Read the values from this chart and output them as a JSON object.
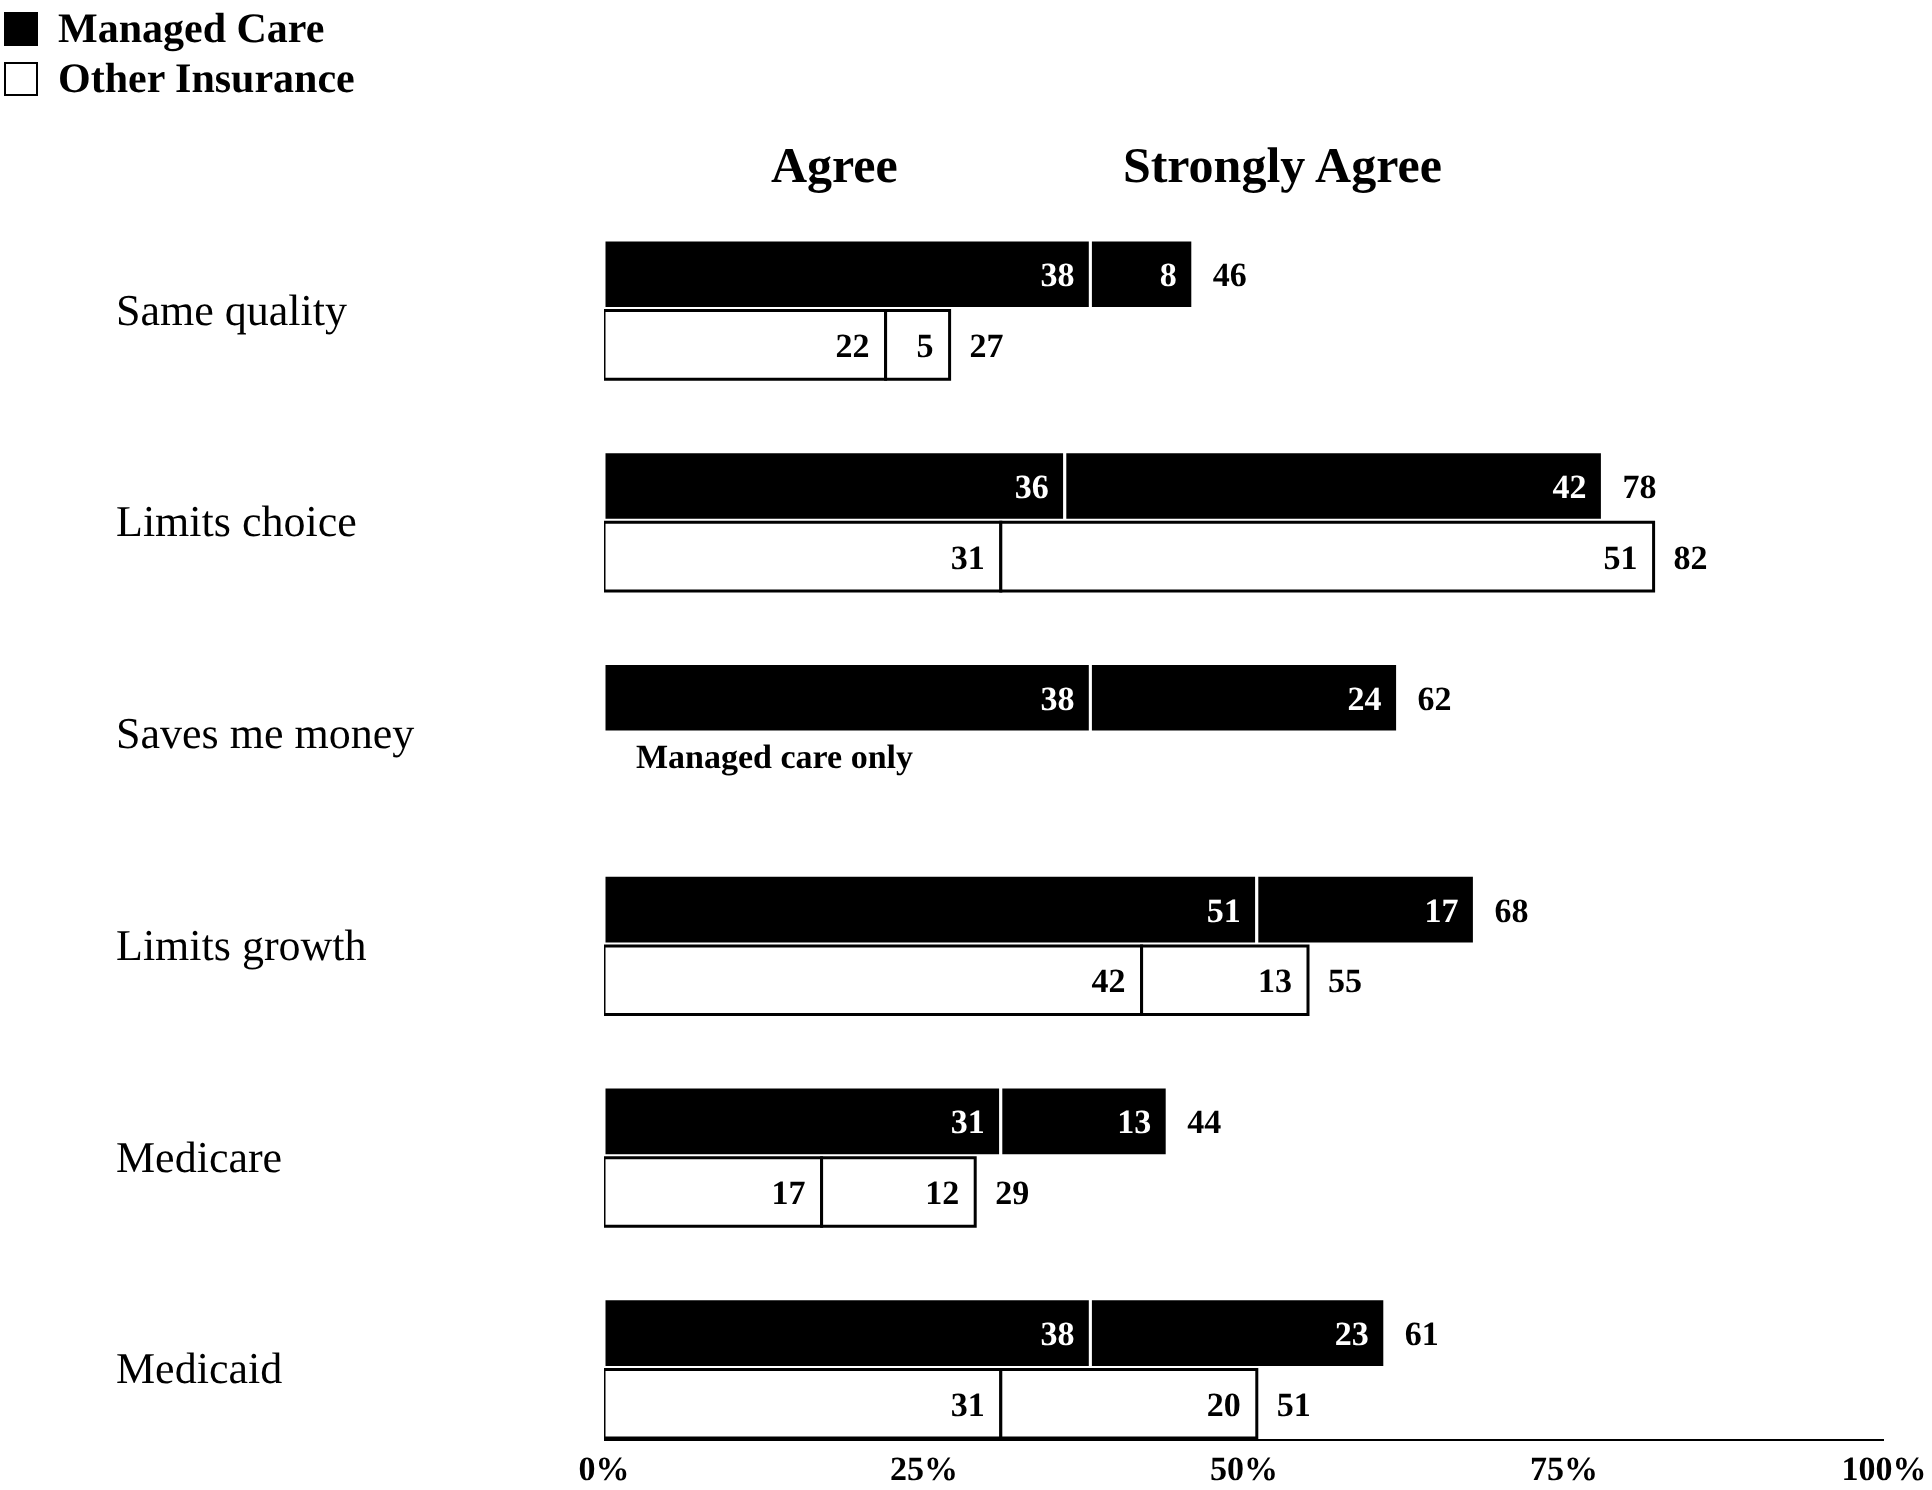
{
  "chart_data": {
    "type": "bar",
    "orientation": "horizontal",
    "stacked": true,
    "categories": [
      "Same quality",
      null,
      null,
      "Limits choice",
      null,
      null,
      "Saves me money",
      null,
      null,
      "Limits growth",
      null,
      null,
      "Medicare",
      null,
      null,
      "Medicaid",
      null
    ],
    "series": [
      {
        "name": "Agree",
        "color": "#000000",
        "colors": [
          "#000000",
          "#ffffff",
          null,
          "#000000",
          "#ffffff",
          null,
          "#000000",
          null,
          null,
          "#000000",
          "#ffffff",
          null,
          "#000000",
          "#ffffff",
          null,
          "#000000",
          "#ffffff"
        ],
        "values": [
          38,
          22,
          null,
          36,
          31,
          null,
          38,
          null,
          null,
          51,
          42,
          null,
          31,
          17,
          null,
          38,
          31
        ]
      },
      {
        "name": "Strongly Agree",
        "color": "#000000",
        "colors": [
          "#000000",
          "#ffffff",
          null,
          "#000000",
          "#ffffff",
          null,
          "#000000",
          null,
          null,
          "#000000",
          "#ffffff",
          null,
          "#000000",
          "#ffffff",
          null,
          "#000000",
          "#ffffff"
        ],
        "values": [
          8,
          5,
          null,
          42,
          51,
          null,
          24,
          null,
          null,
          17,
          13,
          null,
          13,
          12,
          null,
          23,
          20
        ]
      }
    ],
    "totals": [
      "46",
      "27",
      null,
      "78",
      "82",
      null,
      "62",
      null,
      null,
      "68",
      "55",
      null,
      "44",
      "29",
      null,
      "61",
      "51"
    ],
    "data_labels": true,
    "xlim": [
      0,
      100
    ],
    "xticks": [
      {
        "value": 0,
        "label": "0%"
      },
      {
        "value": 25,
        "label": "25%"
      },
      {
        "value": 50,
        "label": "50%"
      },
      {
        "value": 75,
        "label": "75%"
      },
      {
        "value": 100,
        "label": "100%"
      }
    ],
    "grid": false,
    "legend": "top left",
    "annotations": [
      "Managed Care",
      "Other Insurance",
      "Managed care only"
    ]
  }
}
